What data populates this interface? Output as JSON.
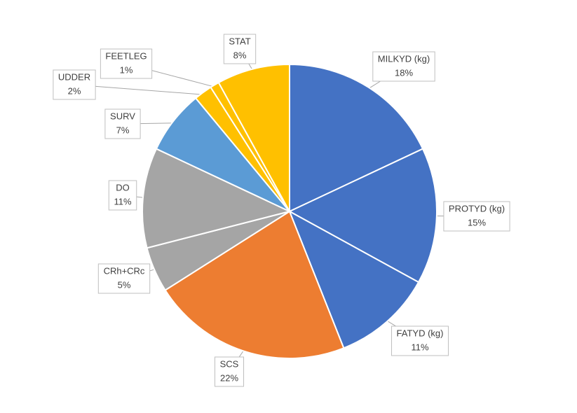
{
  "chart_data": {
    "type": "pie",
    "categories": [
      "MILKYD (kg)",
      "PROTYD (kg)",
      "FATYD (kg)",
      "SCS",
      "CRh+CRc",
      "DO",
      "SURV",
      "UDDER",
      "FEETLEG",
      "STAT"
    ],
    "values": [
      18,
      15,
      11,
      22,
      5,
      11,
      7,
      2,
      1,
      8
    ],
    "value_labels": [
      "18%",
      "15%",
      "11%",
      "22%",
      "5%",
      "11%",
      "7%",
      "2%",
      "1%",
      "8%"
    ],
    "colors": [
      "#4472c4",
      "#4472c4",
      "#4472c4",
      "#ed7d31",
      "#a5a5a5",
      "#a5a5a5",
      "#5b9bd5",
      "#ffc000",
      "#ffc000",
      "#ffc000"
    ]
  }
}
